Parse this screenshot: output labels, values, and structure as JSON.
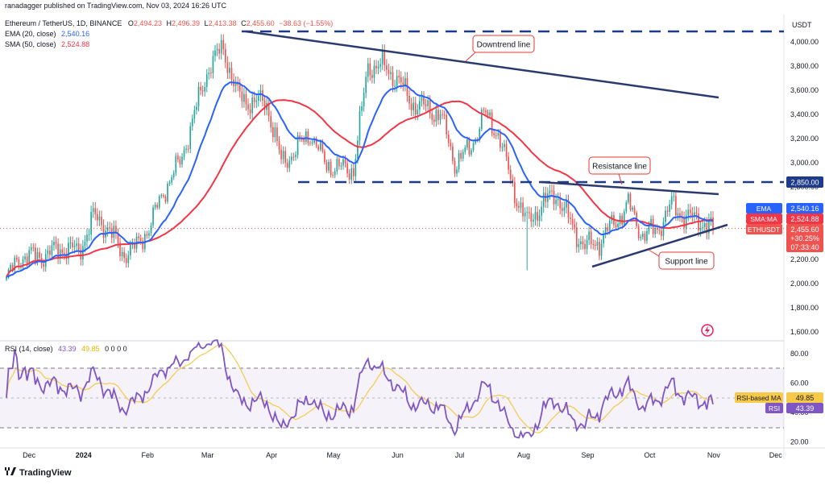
{
  "header": {
    "published": "ranadagger published on TradingView.com, Nov 03, 2024 16:26 UTC",
    "symbol": "Ethereum / TetherUS, 1D, BINANCE",
    "o_label": "O",
    "o": "2,494.23",
    "h_label": "H",
    "h": "2,496.39",
    "l_label": "L",
    "l": "2,413.38",
    "c_label": "C",
    "c": "2,455.60",
    "chg": "−38.63 (−1.55%)",
    "ema_legend": "EMA (20, close)",
    "ema_value": "2,540.16",
    "sma_legend": "SMA (50, close)",
    "sma_value": "2,524.88"
  },
  "price_axis": {
    "unit": "USDT",
    "ticks": [
      "4,000.00",
      "3,800.00",
      "3,600.00",
      "3,400.00",
      "3,200.00",
      "3,000.00",
      "2,800.00",
      "2,600.00",
      "2,400.00",
      "2,200.00",
      "2,000.00",
      "1,800.00",
      "1,600.00"
    ],
    "level_2850": "2,850.00",
    "ema_tag": "EMA",
    "ema_value": "2,540.16",
    "sma_tag": "SMA:MA",
    "sma_value": "2,524.88",
    "pair_tag": "ETHUSDT",
    "price": "2,455.60",
    "chg_pct": "+30.25%",
    "countdown": "07:33:40"
  },
  "rsi": {
    "legend": "RSI (14, close)",
    "v1": "43.39",
    "v2": "49.85",
    "z": "0 0 0 0",
    "ticks": [
      "80.00",
      "60.00",
      "40.00",
      "20.00"
    ],
    "ma_tag": "RSI-based MA",
    "ma_value": "49.85",
    "rsi_tag": "RSI",
    "rsi_value": "43.39"
  },
  "time_axis": [
    "Dec",
    "2024",
    "Feb",
    "Mar",
    "Apr",
    "May",
    "Jun",
    "Jul",
    "Aug",
    "Sep",
    "Oct",
    "Nov",
    "Dec"
  ],
  "annotations": {
    "downtrend": "Downtrend line",
    "resistance": "Resistance line",
    "support": "Support line"
  },
  "footer": {
    "logo_text": "TradingView"
  },
  "colors": {
    "up": "#26a69a",
    "down": "#ef5350",
    "ema": "#2962ff",
    "sma": "#f23645",
    "rsi": "#7e57c2",
    "rsi_ma": "#f7c948",
    "trend": "#1e3a8a"
  },
  "chart_data": {
    "type": "candlestick",
    "symbol": "Ethereum / TetherUS, 1D, BINANCE",
    "ylim": [
      1550,
      4150
    ],
    "closes": [
      {
        "x": "2023-11-27",
        "y": 2030
      },
      {
        "x": "2023-12-04",
        "y": 2230
      },
      {
        "x": "2023-12-11",
        "y": 2220
      },
      {
        "x": "2023-12-18",
        "y": 2250
      },
      {
        "x": "2023-12-25",
        "y": 2300
      },
      {
        "x": "2024-01-01",
        "y": 2260
      },
      {
        "x": "2024-01-08",
        "y": 2550
      },
      {
        "x": "2024-01-15",
        "y": 2470
      },
      {
        "x": "2024-01-22",
        "y": 2250
      },
      {
        "x": "2024-01-29",
        "y": 2300
      },
      {
        "x": "2024-02-05",
        "y": 2500
      },
      {
        "x": "2024-02-12",
        "y": 2800
      },
      {
        "x": "2024-02-19",
        "y": 3000
      },
      {
        "x": "2024-02-26",
        "y": 3400
      },
      {
        "x": "2024-03-04",
        "y": 3800
      },
      {
        "x": "2024-03-11",
        "y": 3950
      },
      {
        "x": "2024-03-18",
        "y": 3550
      },
      {
        "x": "2024-03-25",
        "y": 3500
      },
      {
        "x": "2024-04-01",
        "y": 3500
      },
      {
        "x": "2024-04-08",
        "y": 3000
      },
      {
        "x": "2024-04-15",
        "y": 3100
      },
      {
        "x": "2024-04-22",
        "y": 3250
      },
      {
        "x": "2024-04-29",
        "y": 3000
      },
      {
        "x": "2024-05-06",
        "y": 2950
      },
      {
        "x": "2024-05-13",
        "y": 2950
      },
      {
        "x": "2024-05-20",
        "y": 3800
      },
      {
        "x": "2024-05-27",
        "y": 3800
      },
      {
        "x": "2024-06-03",
        "y": 3700
      },
      {
        "x": "2024-06-10",
        "y": 3500
      },
      {
        "x": "2024-06-17",
        "y": 3450
      },
      {
        "x": "2024-06-24",
        "y": 3400
      },
      {
        "x": "2024-07-01",
        "y": 3000
      },
      {
        "x": "2024-07-08",
        "y": 3100
      },
      {
        "x": "2024-07-15",
        "y": 3400
      },
      {
        "x": "2024-07-22",
        "y": 3250
      },
      {
        "x": "2024-07-29",
        "y": 2800
      },
      {
        "x": "2024-08-05",
        "y": 2500
      },
      {
        "x": "2024-08-12",
        "y": 2650
      },
      {
        "x": "2024-08-19",
        "y": 2750
      },
      {
        "x": "2024-08-26",
        "y": 2500
      },
      {
        "x": "2024-09-02",
        "y": 2300
      },
      {
        "x": "2024-09-09",
        "y": 2350
      },
      {
        "x": "2024-09-16",
        "y": 2500
      },
      {
        "x": "2024-09-23",
        "y": 2650
      },
      {
        "x": "2024-09-30",
        "y": 2400
      },
      {
        "x": "2024-10-07",
        "y": 2450
      },
      {
        "x": "2024-10-14",
        "y": 2650
      },
      {
        "x": "2024-10-21",
        "y": 2550
      },
      {
        "x": "2024-10-28",
        "y": 2520
      },
      {
        "x": "2024-11-03",
        "y": 2455.6
      }
    ],
    "key_levels": [
      2850
    ],
    "rsi_ylim": [
      15,
      92
    ]
  }
}
